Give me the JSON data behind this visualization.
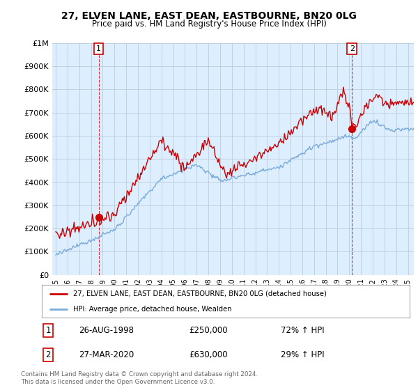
{
  "title_line1": "27, ELVEN LANE, EAST DEAN, EASTBOURNE, BN20 0LG",
  "title_line2": "Price paid vs. HM Land Registry's House Price Index (HPI)",
  "ylim": [
    0,
    1000000
  ],
  "yticks": [
    0,
    100000,
    200000,
    300000,
    400000,
    500000,
    600000,
    700000,
    800000,
    900000,
    1000000
  ],
  "ytick_labels": [
    "£0",
    "£100K",
    "£200K",
    "£300K",
    "£400K",
    "£500K",
    "£600K",
    "£700K",
    "£800K",
    "£900K",
    "£1M"
  ],
  "red_color": "#cc0000",
  "blue_line_color": "#7aabdb",
  "annotation_box_color": "#cc0000",
  "chart_bg_color": "#ddeeff",
  "background_color": "#ffffff",
  "grid_color": "#bbccdd",
  "legend_label_red": "27, ELVEN LANE, EAST DEAN, EASTBOURNE, BN20 0LG (detached house)",
  "legend_label_blue": "HPI: Average price, detached house, Wealden",
  "point1_year": 1998.65,
  "point1_value": 250000,
  "point2_year": 2020.23,
  "point2_value": 630000,
  "point1_date": "26-AUG-1998",
  "point1_price": "£250,000",
  "point1_hpi": "72% ↑ HPI",
  "point2_date": "27-MAR-2020",
  "point2_price": "£630,000",
  "point2_hpi": "29% ↑ HPI",
  "footer": "Contains HM Land Registry data © Crown copyright and database right 2024.\nThis data is licensed under the Open Government Licence v3.0.",
  "xlim_left": 1995.0,
  "xlim_right": 2025.5
}
